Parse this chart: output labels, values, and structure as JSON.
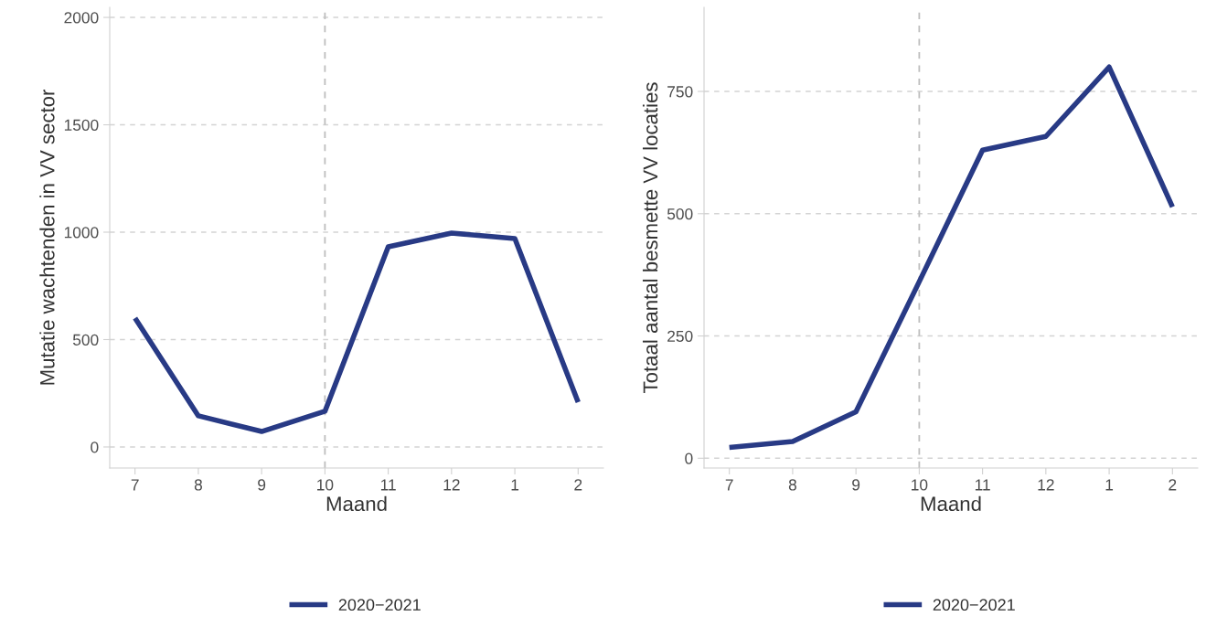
{
  "chart_data": [
    {
      "type": "line",
      "categories": [
        "7",
        "8",
        "9",
        "10",
        "11",
        "12",
        "1",
        "2"
      ],
      "xlabel": "Maand",
      "ylabel": "Mutatie wachtenden in VV sector",
      "series": [
        {
          "name": "2020−2021",
          "color": "#283a85",
          "values": [
            600,
            145,
            72,
            166,
            932,
            996,
            970,
            208
          ]
        }
      ],
      "ylim": [
        -98,
        2047
      ],
      "yticks": [
        0,
        500,
        1000,
        1500,
        2000
      ],
      "grid": "y",
      "legend": "bottom",
      "line_style": "solid",
      "ref_lines": [
        {
          "axis": "x",
          "value": "10",
          "color": "#bebebe",
          "line_style": "dashed"
        }
      ]
    },
    {
      "type": "line",
      "categories": [
        "7",
        "8",
        "9",
        "10",
        "11",
        "12",
        "1",
        "2"
      ],
      "xlabel": "Maand",
      "ylabel": "Totaal aantal besmette VV locaties",
      "series": [
        {
          "name": "2020−2021",
          "color": "#283a85",
          "values": [
            22,
            34,
            95,
            361,
            630,
            658,
            800,
            514
          ]
        }
      ],
      "ylim": [
        -20,
        922
      ],
      "yticks": [
        0,
        250,
        500,
        750
      ],
      "grid": "y",
      "legend": "bottom",
      "line_style": "solid",
      "ref_lines": [
        {
          "axis": "x",
          "value": "10",
          "color": "#bebebe",
          "line_style": "dashed"
        }
      ]
    }
  ]
}
